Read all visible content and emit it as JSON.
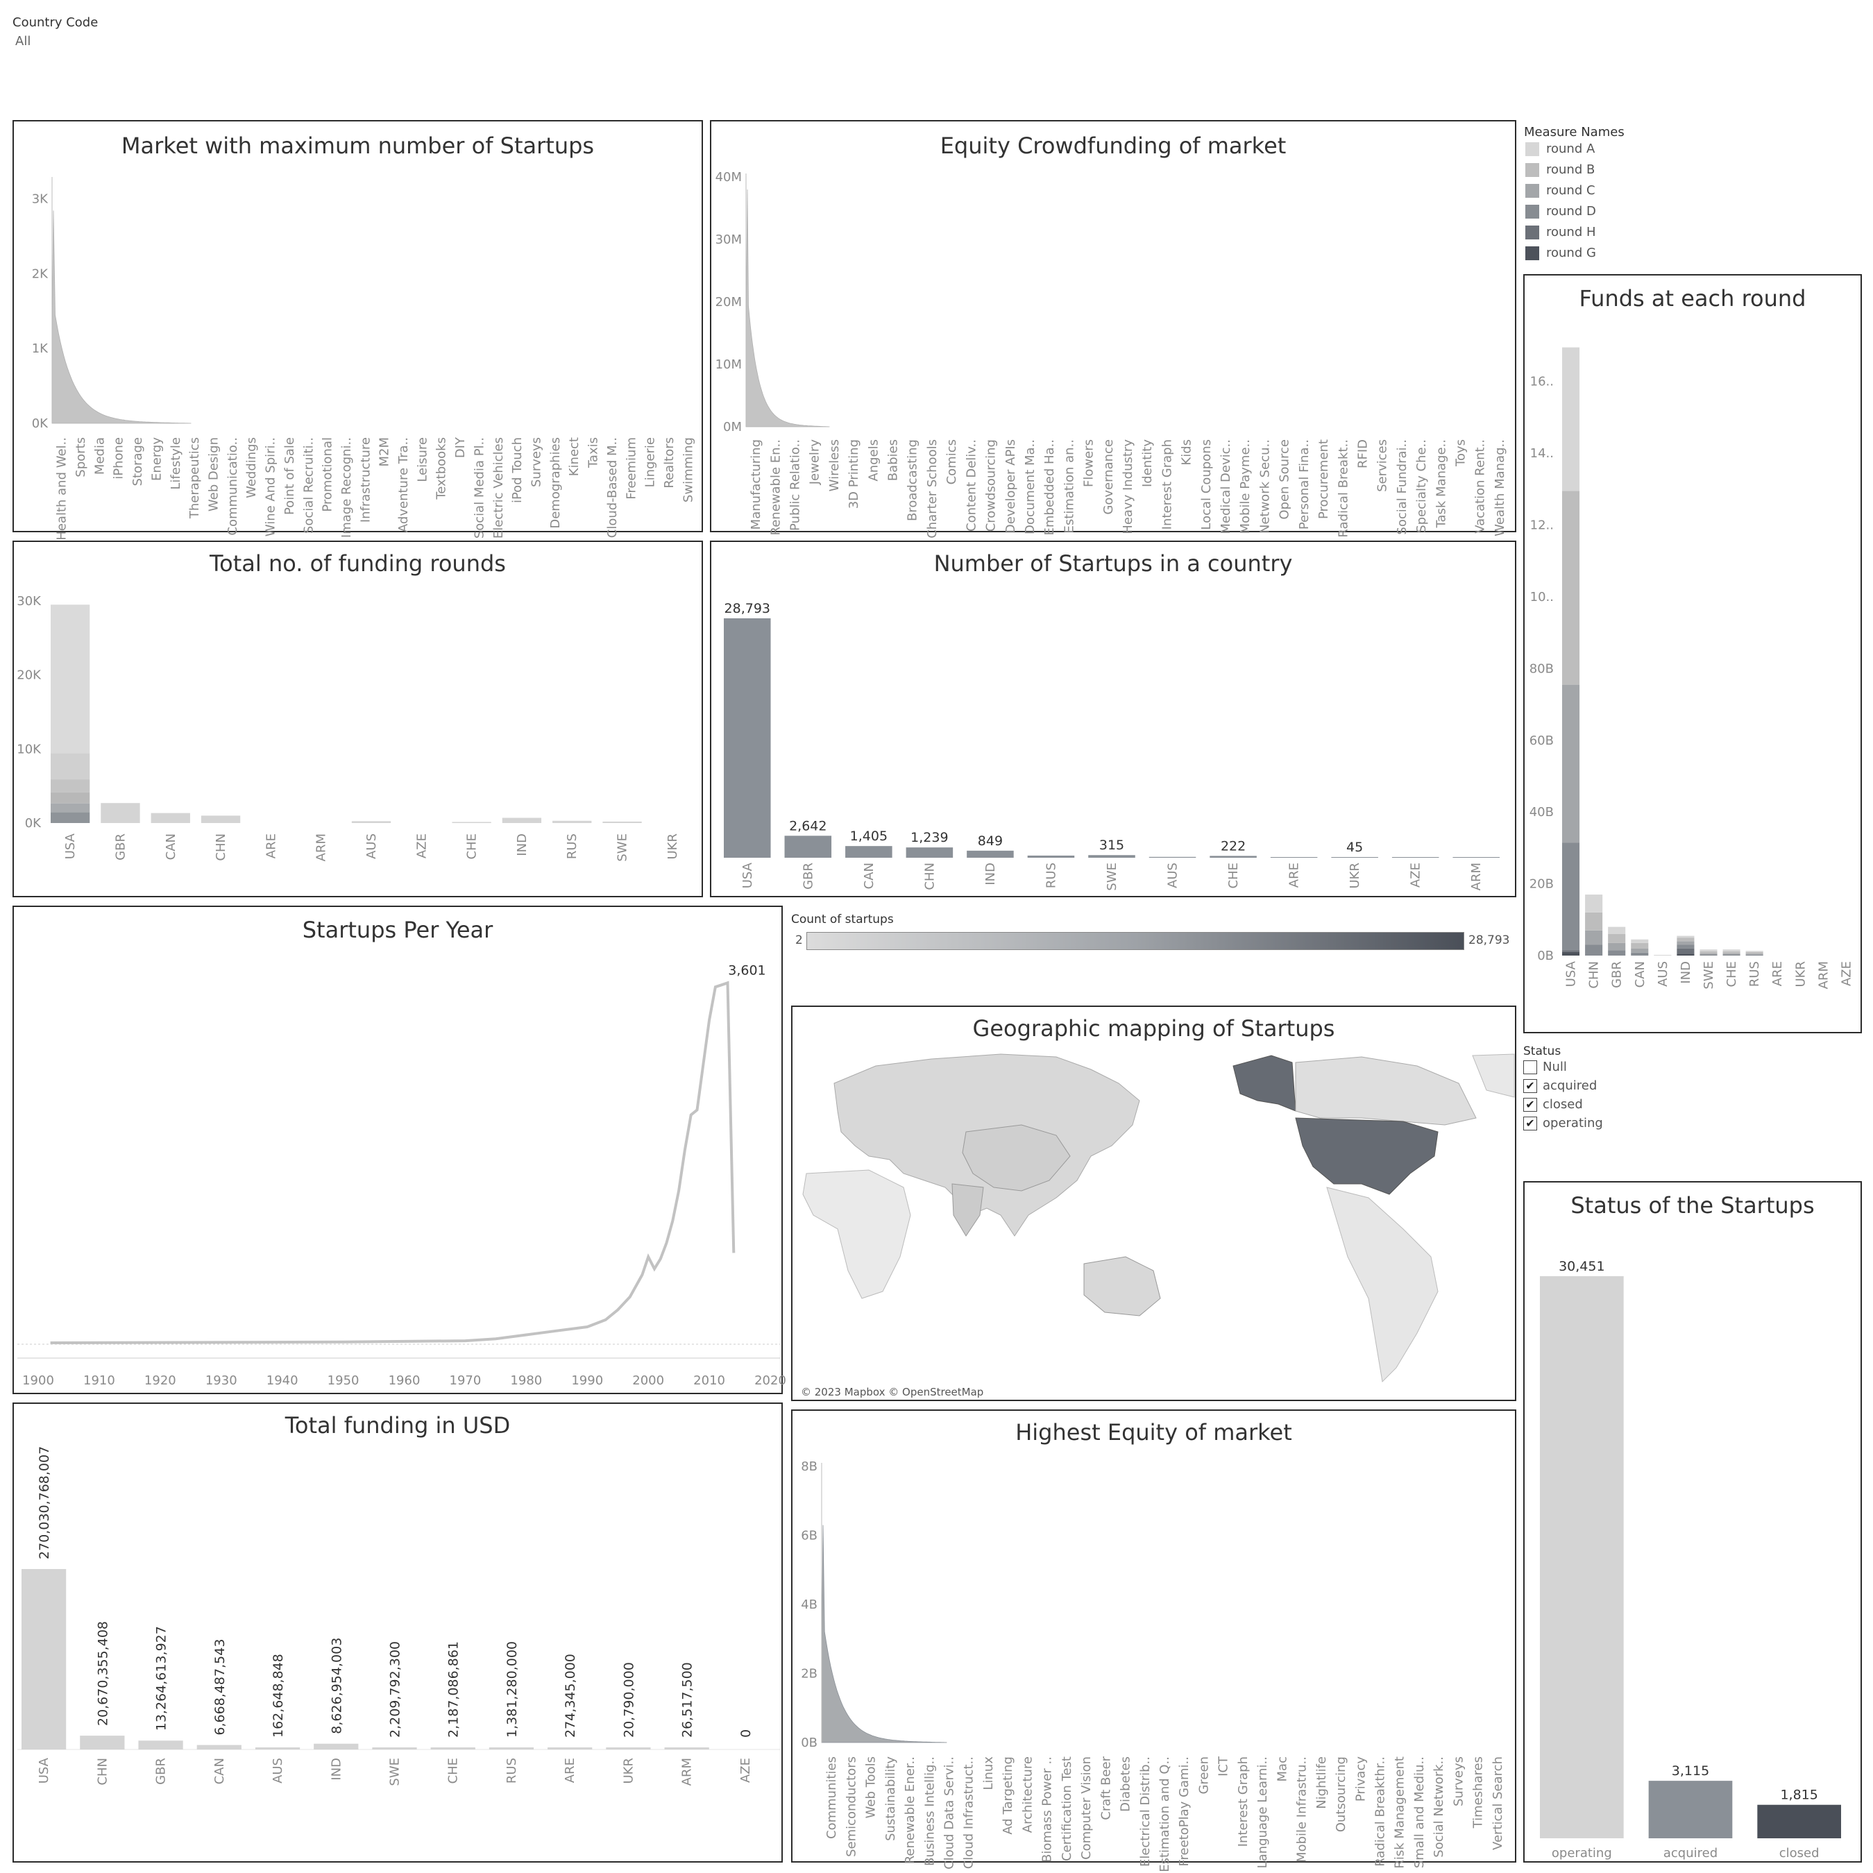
{
  "filter": {
    "label": "Country Code",
    "value": "All"
  },
  "colors": {
    "light": "#d4d4d4",
    "bar_dark": "#8a9097",
    "highlight": "#666b73",
    "closed": "#4a4f58",
    "frame": "#2b2b2b"
  },
  "measure_legend": {
    "title": "Measure Names",
    "items": [
      {
        "label": "round A",
        "color": "#d6d6d6"
      },
      {
        "label": "round B",
        "color": "#bdbdbd"
      },
      {
        "label": "round C",
        "color": "#a3a6a9"
      },
      {
        "label": "round D",
        "color": "#878c92"
      },
      {
        "label": "round H",
        "color": "#6b7078"
      },
      {
        "label": "round G",
        "color": "#4d525b"
      }
    ]
  },
  "status_filter": {
    "title": "Status",
    "items": [
      {
        "label": "Null",
        "checked": false
      },
      {
        "label": "acquired",
        "checked": true
      },
      {
        "label": "closed",
        "checked": true
      },
      {
        "label": "operating",
        "checked": true
      }
    ]
  },
  "count_legend": {
    "title": "Count of startups",
    "min": "2",
    "max": "28,793"
  },
  "map": {
    "title": "Geographic mapping of Startups",
    "attribution": "© 2023 Mapbox © OpenStreetMap"
  },
  "chart_data": [
    {
      "id": "market_max",
      "type": "area",
      "title": "Market with maximum number of Startups",
      "y_ticks": [
        "0K",
        "1K",
        "2K",
        "3K"
      ],
      "ylim": [
        0,
        3600
      ],
      "peak": 3200,
      "categories": [
        "Health and Wel..",
        "Sports",
        "Media",
        "iPhone",
        "Storage",
        "Energy",
        "Lifestyle",
        "Therapeutics",
        "Web Design",
        "Communicatio..",
        "Weddings",
        "Wine And Spiri..",
        "Point of Sale",
        "Social Recruiti..",
        "Promotional",
        "Image Recogni..",
        "Infrastructure",
        "M2M",
        "Adventure Tra..",
        "Leisure",
        "Textbooks",
        "DIY",
        "Social Media Pl..",
        "Electric Vehicles",
        "iPod Touch",
        "Surveys",
        "Demographies",
        "Kinect",
        "Taxis",
        "Cloud-Based M..",
        "Freemium",
        "Lingerie",
        "Realtors",
        "Swimming"
      ]
    },
    {
      "id": "equity_crowd",
      "type": "area",
      "title": "Equity Crowdfunding of market",
      "y_ticks": [
        "0M",
        "10M",
        "20M",
        "30M",
        "40M"
      ],
      "ylim": [
        0,
        40000000
      ],
      "peak": 38000000,
      "categories": [
        "Manufacturing",
        "Renewable En..",
        "Public Relatio..",
        "Jewelry",
        "Wireless",
        "3D Printing",
        "Angels",
        "Babies",
        "Broadcasting",
        "Charter Schools",
        "Comics",
        "Content Deliv..",
        "Crowdsourcing",
        "Developer APIs",
        "Document Ma..",
        "Embedded Ha..",
        "Estimation an..",
        "Flowers",
        "Governance",
        "Heavy Industry",
        "Identity",
        "Interest Graph",
        "Kids",
        "Local Coupons",
        "Medical Devic..",
        "Mobile Payme..",
        "Network Secu..",
        "Open Source",
        "Personal Fina..",
        "Procurement",
        "Radical Breakt..",
        "RFID",
        "Services",
        "Social Fundrai..",
        "Specialty Che..",
        "Task Manage..",
        "Toys",
        "Vacation Rent..",
        "Wealth Manag.."
      ]
    },
    {
      "id": "funding_rounds",
      "type": "bar",
      "title": "Total no. of funding rounds",
      "y_ticks": [
        "0K",
        "10K",
        "20K",
        "30K"
      ],
      "ylim": [
        0,
        30000
      ],
      "categories": [
        "USA",
        "GBR",
        "CAN",
        "CHN",
        "ARE",
        "ARM",
        "AUS",
        "AZE",
        "CHE",
        "IND",
        "RUS",
        "SWE",
        "UKR"
      ],
      "values": [
        29500,
        2700,
        1350,
        1000,
        0,
        0,
        250,
        0,
        150,
        700,
        300,
        200,
        0
      ]
    },
    {
      "id": "startups_country",
      "type": "bar",
      "title": "Number of Startups in a country",
      "categories": [
        "USA",
        "GBR",
        "CAN",
        "CHN",
        "IND",
        "RUS",
        "SWE",
        "AUS",
        "CHE",
        "ARE",
        "UKR",
        "AZE",
        "ARM"
      ],
      "values": [
        28793,
        2642,
        1405,
        1239,
        849,
        260,
        315,
        100,
        222,
        50,
        45,
        4,
        2
      ],
      "labels": [
        "28,793",
        "2,642",
        "1,405",
        "1,239",
        "849",
        "",
        "315",
        "",
        "222",
        "",
        "45",
        "",
        ""
      ]
    },
    {
      "id": "funds_round",
      "type": "bar",
      "title": "Funds at each round",
      "y_ticks": [
        "0B",
        "20B",
        "40B",
        "60B",
        "80B",
        "10..",
        "12..",
        "14..",
        "16.."
      ],
      "ylim": [
        0,
        176
      ],
      "categories": [
        "USA",
        "CHN",
        "GBR",
        "CAN",
        "AUS",
        "IND",
        "SWE",
        "CHE",
        "RUS",
        "ARE",
        "UKR",
        "ARM",
        "AZE"
      ],
      "series": [
        {
          "name": "round G",
          "values": [
            1,
            0,
            0,
            0,
            0,
            0.5,
            0,
            0,
            0,
            0,
            0,
            0,
            0
          ]
        },
        {
          "name": "round H",
          "values": [
            0.5,
            0,
            0,
            0,
            0,
            1.5,
            0,
            0,
            0,
            0,
            0,
            0,
            0
          ]
        },
        {
          "name": "round D",
          "values": [
            30,
            3,
            1.5,
            0.8,
            0,
            1,
            0.3,
            0.3,
            0.2,
            0,
            0,
            0,
            0
          ]
        },
        {
          "name": "round C",
          "values": [
            44,
            4,
            2,
            1.2,
            0,
            1,
            0.3,
            0.3,
            0.3,
            0,
            0,
            0,
            0
          ]
        },
        {
          "name": "round B",
          "values": [
            54,
            5,
            2.5,
            1.5,
            0,
            1,
            0.6,
            0.6,
            0.5,
            0,
            0,
            0,
            0
          ]
        },
        {
          "name": "round A",
          "values": [
            40,
            5,
            2,
            1,
            0.2,
            0.5,
            0.5,
            0.5,
            0.3,
            0,
            0,
            0,
            0
          ]
        }
      ]
    },
    {
      "id": "per_year",
      "type": "line",
      "title": "Startups Per Year",
      "x_ticks": [
        "1900",
        "1910",
        "1920",
        "1930",
        "1940",
        "1950",
        "1960",
        "1970",
        "1980",
        "1990",
        "2000",
        "2010",
        "2020"
      ],
      "xlim": [
        1900,
        2020
      ],
      "ylim": [
        0,
        3700
      ],
      "peak_label": "3,601",
      "x": [
        1902,
        1950,
        1970,
        1975,
        1980,
        1985,
        1990,
        1993,
        1995,
        1997,
        1999,
        2000,
        2001,
        2002,
        2003,
        2004,
        2005,
        2006,
        2007,
        2008,
        2009,
        2010,
        2011,
        2012,
        2013,
        2014
      ],
      "y": [
        0,
        8,
        20,
        40,
        80,
        120,
        160,
        230,
        330,
        460,
        680,
        860,
        740,
        840,
        1000,
        1220,
        1520,
        1930,
        2280,
        2330,
        2780,
        3230,
        3560,
        3580,
        3601,
        900
      ]
    },
    {
      "id": "total_funding",
      "type": "bar",
      "title": "Total funding in USD",
      "categories": [
        "USA",
        "CHN",
        "GBR",
        "CAN",
        "AUS",
        "IND",
        "SWE",
        "CHE",
        "RUS",
        "ARE",
        "UKR",
        "ARM",
        "AZE"
      ],
      "values": [
        270030768007,
        20670355408,
        13264613927,
        6668487543,
        162648848,
        8626954003,
        2209792300,
        2187086861,
        1381280000,
        274345000,
        20790000,
        26517500,
        0
      ],
      "labels": [
        "270,030,768,007",
        "20,670,355,408",
        "13,264,613,927",
        "6,668,487,543",
        "162,648,848",
        "8,626,954,003",
        "2,209,792,300",
        "2,187,086,861",
        "1,381,280,000",
        "274,345,000",
        "20,790,000",
        "26,517,500",
        "0"
      ]
    },
    {
      "id": "highest_equity",
      "type": "area",
      "title": "Highest Equity of market",
      "y_ticks": [
        "0B",
        "2B",
        "4B",
        "6B",
        "8B"
      ],
      "ylim": [
        0,
        8000000000
      ],
      "peak": 6300000000,
      "categories": [
        "Communities",
        "Semiconductors",
        "Web Tools",
        "Sustainability",
        "Renewable Ener..",
        "Business Intellig..",
        "Cloud Data Servi..",
        "Cloud Infrastruct..",
        "Linux",
        "Ad Targeting",
        "Architecture",
        "Biomass Power ..",
        "Certification Test",
        "Computer Vision",
        "Craft Beer",
        "Diabetes",
        "Electrical Distrib..",
        "Estimation and Q..",
        "FreetoPlay Gami..",
        "Green",
        "ICT",
        "Interest Graph",
        "Language Learni..",
        "Mac",
        "Mobile Infrastru..",
        "Nightlife",
        "Outsourcing",
        "Privacy",
        "Radical Breakthr..",
        "Risk Management",
        "Small and Mediu..",
        "Social Network..",
        "Surveys",
        "Timeshares",
        "Vertical Search"
      ]
    },
    {
      "id": "status",
      "type": "bar",
      "title": "Status of the Startups",
      "categories": [
        "operating",
        "acquired",
        "closed"
      ],
      "values": [
        30451,
        3115,
        1815
      ],
      "labels": [
        "30,451",
        "3,115",
        "1,815"
      ]
    }
  ]
}
